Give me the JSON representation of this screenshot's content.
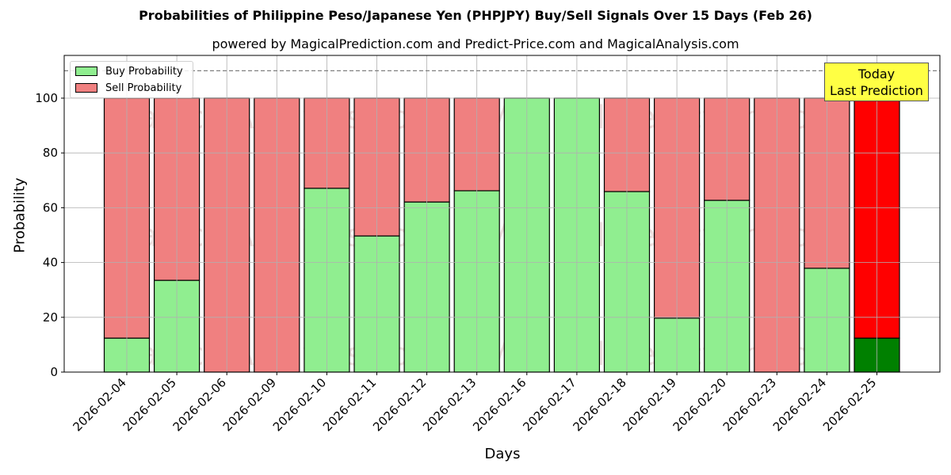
{
  "title": "Probabilities of Philippine Peso/Japanese Yen (PHPJPY) Buy/Sell Signals Over 15 Days (Feb 26)",
  "subtitle": "powered by MagicalPrediction.com and Predict-Price.com and MagicalAnalysis.com",
  "legend": {
    "buy_label": "Buy Probability",
    "sell_label": "Sell Probability"
  },
  "annotation": {
    "line1": "Today",
    "line2": "Last Prediction"
  },
  "watermarks": [
    "MagicalAnalysis.com",
    "MagicalPrediction.com"
  ],
  "colors": {
    "buy": "#90ee90",
    "sell": "#f08080",
    "today_buy": "#008000",
    "today_sell": "#ff0000",
    "annotation_bg": "#ffff44"
  },
  "chart_data": {
    "type": "bar",
    "stacked": true,
    "title": "Probabilities of Philippine Peso/Japanese Yen (PHPJPY) Buy/Sell Signals Over 15 Days (Feb 26)",
    "subtitle": "powered by MagicalPrediction.com and Predict-Price.com and MagicalAnalysis.com",
    "xlabel": "Days",
    "ylabel": "Probability",
    "ylim": [
      0,
      115.6
    ],
    "yticks": [
      0,
      20,
      40,
      60,
      80,
      100
    ],
    "grid": true,
    "legend_position": "upper left",
    "reference_line": {
      "y": 110,
      "style": "dashed",
      "color": "#808080"
    },
    "categories": [
      "2026-02-04",
      "2026-02-05",
      "2026-02-06",
      "2026-02-09",
      "2026-02-10",
      "2026-02-11",
      "2026-02-12",
      "2026-02-13",
      "2026-02-16",
      "2026-02-17",
      "2026-02-18",
      "2026-02-19",
      "2026-02-20",
      "2026-02-23",
      "2026-02-24",
      "2026-02-25"
    ],
    "series": [
      {
        "name": "Buy Probability",
        "values": [
          12.4,
          33.5,
          0,
          0,
          67.1,
          49.7,
          62.1,
          66.2,
          100,
          100,
          65.9,
          19.7,
          62.7,
          0,
          37.9,
          12.4
        ]
      },
      {
        "name": "Sell Probability",
        "values": [
          87.6,
          66.5,
          100,
          100,
          32.9,
          50.3,
          37.9,
          33.8,
          0,
          0,
          34.1,
          80.3,
          37.3,
          100,
          62.1,
          87.6
        ]
      }
    ],
    "highlight": {
      "category": "2026-02-25",
      "label": "Today\nLast Prediction"
    }
  }
}
